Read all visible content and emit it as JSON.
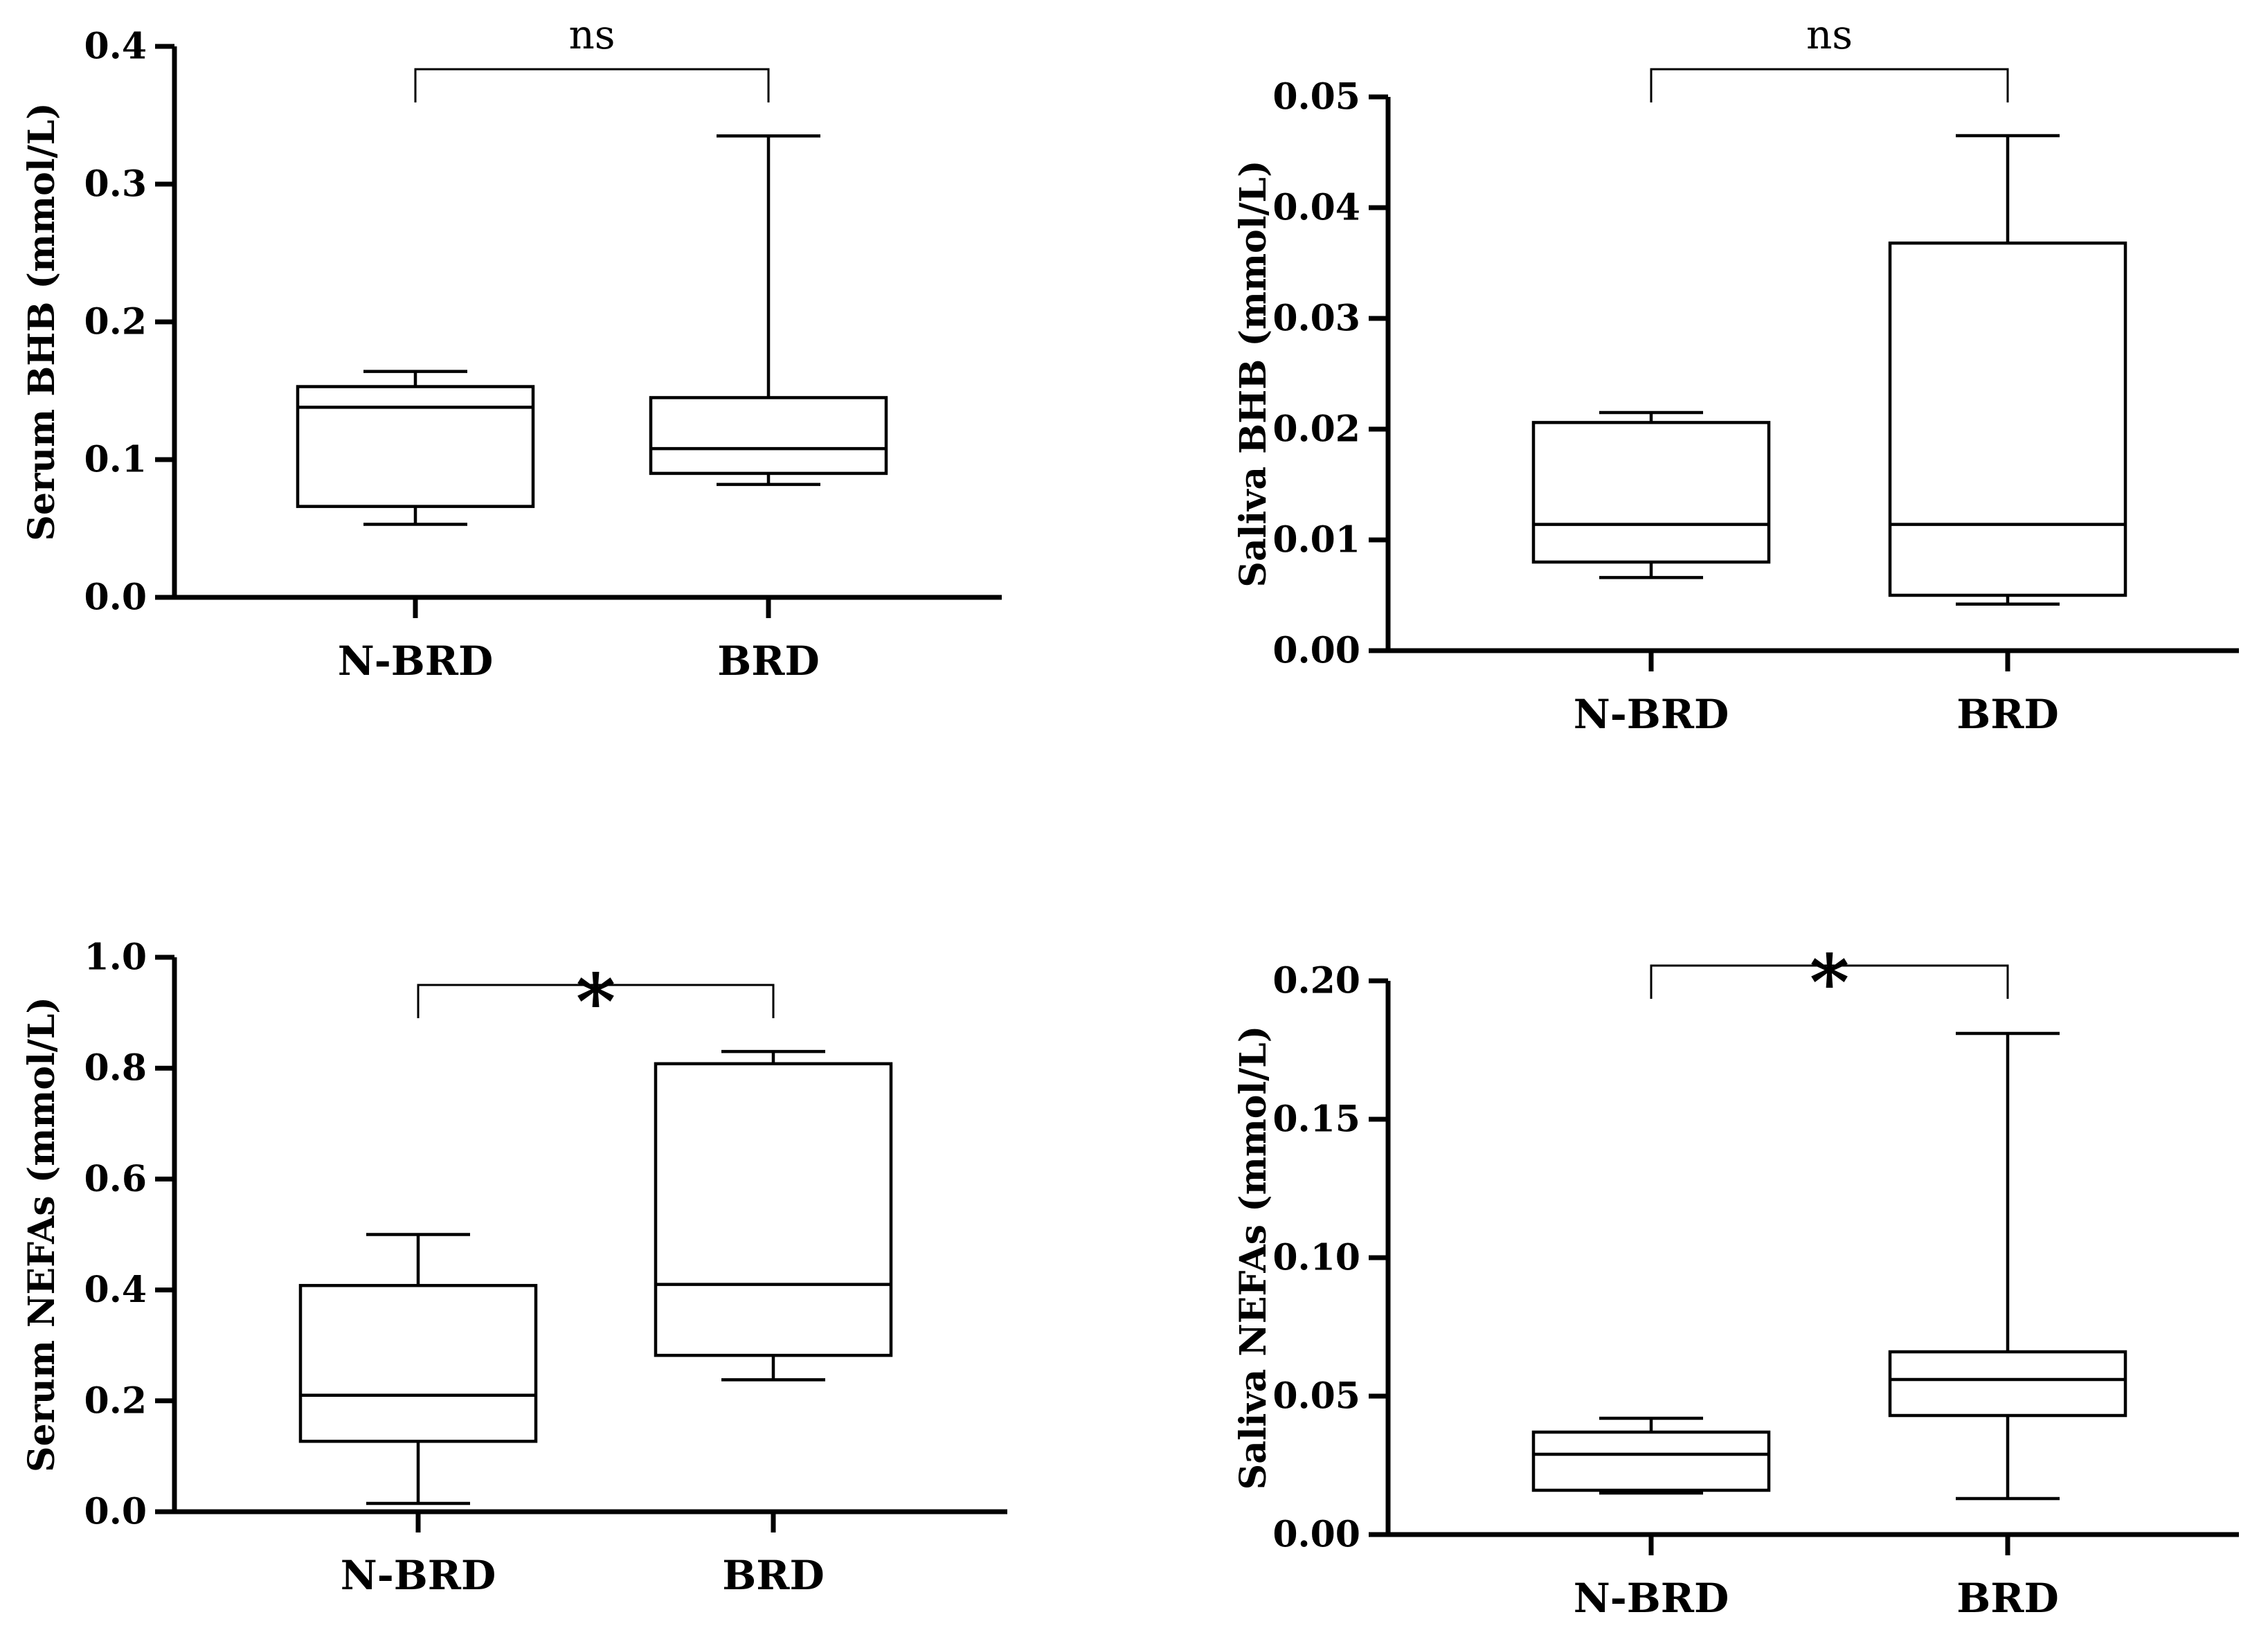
{
  "chart_data": [
    {
      "type": "box",
      "categories": [
        "N-BRD",
        "BRD"
      ],
      "ylabel": "Serum BHB (mmol/L)",
      "ylim": [
        0,
        0.4
      ],
      "yticks": [
        "0.0",
        "0.1",
        "0.2",
        "0.3",
        "0.4"
      ],
      "series": [
        {
          "name": "N-BRD",
          "min": 0.053,
          "q1": 0.066,
          "median": 0.138,
          "q3": 0.153,
          "max": 0.164
        },
        {
          "name": "BRD",
          "min": 0.082,
          "q1": 0.09,
          "median": 0.108,
          "q3": 0.145,
          "max": 0.335
        }
      ],
      "significance": "ns"
    },
    {
      "type": "box",
      "categories": [
        "N-BRD",
        "BRD"
      ],
      "ylabel": "Saliva BHB (mmol/L)",
      "ylim": [
        0,
        0.05
      ],
      "yticks": [
        "0.00",
        "0.01",
        "0.02",
        "0.03",
        "0.04",
        "0.05"
      ],
      "series": [
        {
          "name": "N-BRD",
          "min": 0.0066,
          "q1": 0.008,
          "median": 0.0114,
          "q3": 0.0206,
          "max": 0.0215
        },
        {
          "name": "BRD",
          "min": 0.0042,
          "q1": 0.005,
          "median": 0.0114,
          "q3": 0.0368,
          "max": 0.0465
        }
      ],
      "significance": "ns"
    },
    {
      "type": "box",
      "categories": [
        "N-BRD",
        "BRD"
      ],
      "ylabel": "Serum NEFAs (mmol/L)",
      "ylim": [
        0,
        1.0
      ],
      "yticks": [
        "0.0",
        "0.2",
        "0.4",
        "0.6",
        "0.8",
        "1.0"
      ],
      "series": [
        {
          "name": "N-BRD",
          "min": 0.015,
          "q1": 0.127,
          "median": 0.21,
          "q3": 0.408,
          "max": 0.5
        },
        {
          "name": "BRD",
          "min": 0.238,
          "q1": 0.282,
          "median": 0.41,
          "q3": 0.808,
          "max": 0.83
        }
      ],
      "significance": "*"
    },
    {
      "type": "box",
      "categories": [
        "N-BRD",
        "BRD"
      ],
      "ylabel": "Saliva NEFAs (mmol/L)",
      "ylim": [
        0,
        0.2
      ],
      "yticks": [
        "0.00",
        "0.05",
        "0.10",
        "0.15",
        "0.20"
      ],
      "series": [
        {
          "name": "N-BRD",
          "min": 0.015,
          "q1": 0.016,
          "median": 0.029,
          "q3": 0.037,
          "max": 0.042
        },
        {
          "name": "BRD",
          "min": 0.013,
          "q1": 0.043,
          "median": 0.056,
          "q3": 0.066,
          "max": 0.181
        }
      ],
      "significance": "*"
    }
  ]
}
